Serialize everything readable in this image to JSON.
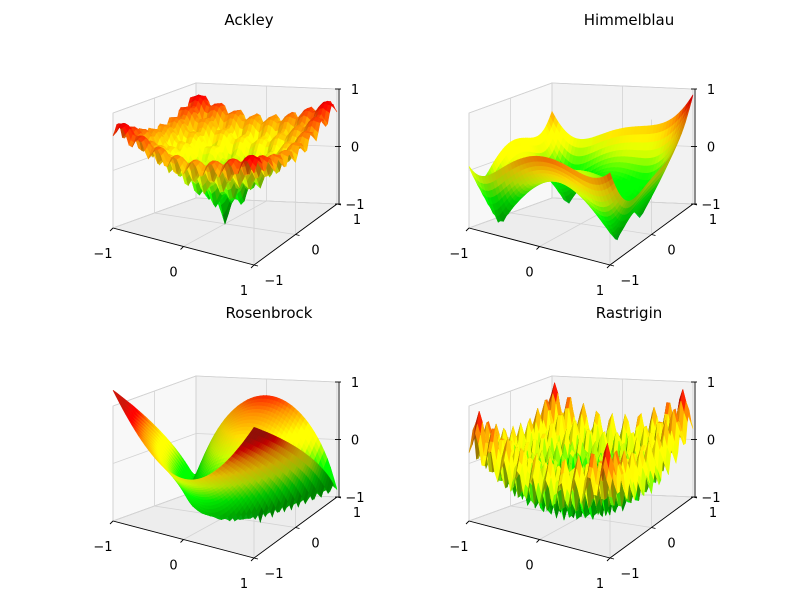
{
  "chart_data": [
    {
      "type": "surface3d",
      "title": "Ackley",
      "function": "ackley",
      "x_ticks": [
        "−1",
        "0",
        "1"
      ],
      "y_ticks": [
        "−1",
        "0",
        "1"
      ],
      "z_ticks": [
        "−1",
        "0",
        "1"
      ],
      "xlim": [
        -1,
        1
      ],
      "ylim": [
        -1,
        1
      ],
      "zlim": [
        -1,
        1
      ],
      "colormap": "nipy_spectral"
    },
    {
      "type": "surface3d",
      "title": "Himmelblau",
      "function": "himmelblau",
      "x_ticks": [
        "−1",
        "0",
        "1"
      ],
      "y_ticks": [
        "−1",
        "0",
        "1"
      ],
      "z_ticks": [
        "−1",
        "0",
        "1"
      ],
      "xlim": [
        -1,
        1
      ],
      "ylim": [
        -1,
        1
      ],
      "zlim": [
        -1,
        1
      ],
      "colormap": "nipy_spectral"
    },
    {
      "type": "surface3d",
      "title": "Rosenbrock",
      "function": "rosenbrock",
      "x_ticks": [
        "−1",
        "0",
        "1"
      ],
      "y_ticks": [
        "−1",
        "0",
        "1"
      ],
      "z_ticks": [
        "−1",
        "0",
        "1"
      ],
      "xlim": [
        -1,
        1
      ],
      "ylim": [
        -1,
        1
      ],
      "zlim": [
        -1,
        1
      ],
      "colormap": "nipy_spectral"
    },
    {
      "type": "surface3d",
      "title": "Rastrigin",
      "function": "rastrigin",
      "x_ticks": [
        "−1",
        "0",
        "1"
      ],
      "y_ticks": [
        "−1",
        "0",
        "1"
      ],
      "z_ticks": [
        "−1",
        "0",
        "1"
      ],
      "xlim": [
        -1,
        1
      ],
      "ylim": [
        -1,
        1
      ],
      "zlim": [
        -1,
        1
      ],
      "colormap": "nipy_spectral"
    }
  ]
}
